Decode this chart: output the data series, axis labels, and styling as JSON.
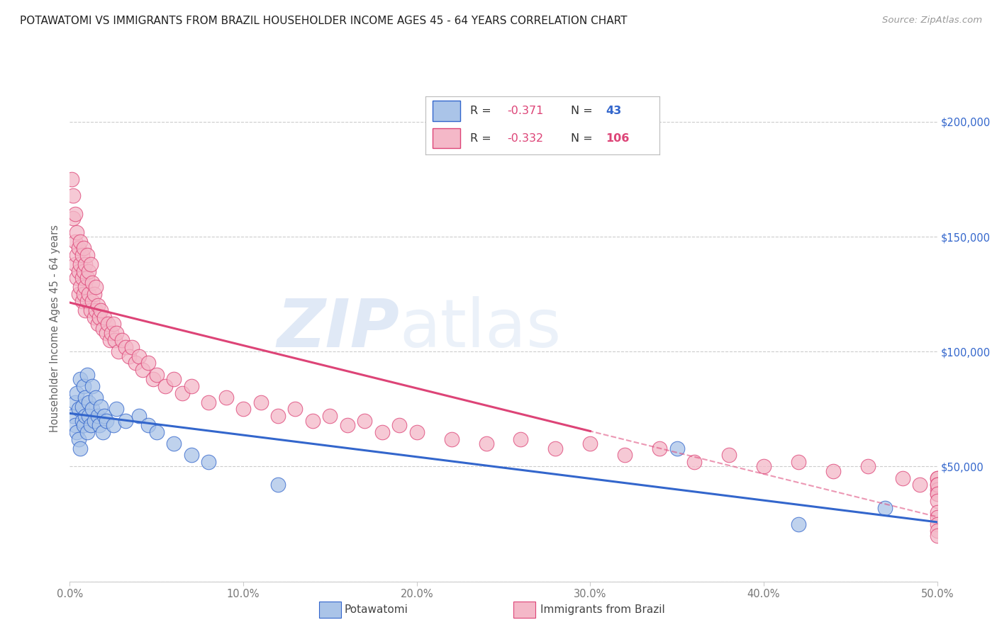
{
  "title": "POTAWATOMI VS IMMIGRANTS FROM BRAZIL HOUSEHOLDER INCOME AGES 45 - 64 YEARS CORRELATION CHART",
  "source": "Source: ZipAtlas.com",
  "ylabel": "Householder Income Ages 45 - 64 years",
  "xlim": [
    0,
    0.5
  ],
  "ylim": [
    0,
    220000
  ],
  "xticks": [
    0.0,
    0.1,
    0.2,
    0.3,
    0.4,
    0.5
  ],
  "xticklabels": [
    "0.0%",
    "10.0%",
    "20.0%",
    "30.0%",
    "40.0%",
    "50.0%"
  ],
  "yticks": [
    0,
    50000,
    100000,
    150000,
    200000
  ],
  "yticklabels": [
    "",
    "$50,000",
    "$100,000",
    "$150,000",
    "$200,000"
  ],
  "grid_color": "#cccccc",
  "background_color": "#ffffff",
  "watermark_zip": "ZIP",
  "watermark_atlas": "atlas",
  "legend_R1": "-0.371",
  "legend_N1": "43",
  "legend_R2": "-0.332",
  "legend_N2": "106",
  "series1_color": "#aac4e8",
  "series2_color": "#f4b8c8",
  "line1_color": "#3366cc",
  "line2_color": "#dd4477",
  "series1_label": "Potawatomi",
  "series2_label": "Immigrants from Brazil",
  "potawatomi_x": [
    0.002,
    0.003,
    0.003,
    0.004,
    0.004,
    0.005,
    0.005,
    0.006,
    0.006,
    0.007,
    0.007,
    0.008,
    0.008,
    0.009,
    0.009,
    0.01,
    0.01,
    0.011,
    0.011,
    0.012,
    0.013,
    0.013,
    0.014,
    0.015,
    0.016,
    0.017,
    0.018,
    0.019,
    0.02,
    0.021,
    0.025,
    0.027,
    0.032,
    0.04,
    0.045,
    0.05,
    0.06,
    0.07,
    0.08,
    0.12,
    0.35,
    0.42,
    0.47
  ],
  "potawatomi_y": [
    72000,
    78000,
    68000,
    82000,
    65000,
    75000,
    62000,
    88000,
    58000,
    76000,
    70000,
    85000,
    68000,
    72000,
    80000,
    90000,
    65000,
    78000,
    72000,
    68000,
    85000,
    75000,
    70000,
    80000,
    72000,
    68000,
    76000,
    65000,
    72000,
    70000,
    68000,
    75000,
    70000,
    72000,
    68000,
    65000,
    60000,
    55000,
    52000,
    42000,
    58000,
    25000,
    32000
  ],
  "brazil_x": [
    0.001,
    0.002,
    0.002,
    0.003,
    0.003,
    0.003,
    0.004,
    0.004,
    0.004,
    0.005,
    0.005,
    0.005,
    0.006,
    0.006,
    0.006,
    0.007,
    0.007,
    0.007,
    0.008,
    0.008,
    0.008,
    0.009,
    0.009,
    0.009,
    0.01,
    0.01,
    0.01,
    0.011,
    0.011,
    0.012,
    0.012,
    0.013,
    0.013,
    0.014,
    0.014,
    0.015,
    0.015,
    0.016,
    0.016,
    0.017,
    0.018,
    0.019,
    0.02,
    0.021,
    0.022,
    0.023,
    0.024,
    0.025,
    0.026,
    0.027,
    0.028,
    0.03,
    0.032,
    0.034,
    0.036,
    0.038,
    0.04,
    0.042,
    0.045,
    0.048,
    0.05,
    0.055,
    0.06,
    0.065,
    0.07,
    0.08,
    0.09,
    0.1,
    0.11,
    0.12,
    0.13,
    0.14,
    0.15,
    0.16,
    0.17,
    0.18,
    0.19,
    0.2,
    0.22,
    0.24,
    0.26,
    0.28,
    0.3,
    0.32,
    0.34,
    0.36,
    0.38,
    0.4,
    0.42,
    0.44,
    0.46,
    0.48,
    0.49,
    0.5,
    0.5,
    0.5,
    0.5,
    0.5,
    0.5,
    0.5,
    0.5,
    0.5,
    0.5,
    0.5,
    0.5,
    0.5
  ],
  "brazil_y": [
    175000,
    168000,
    158000,
    160000,
    148000,
    138000,
    152000,
    142000,
    132000,
    145000,
    135000,
    125000,
    148000,
    138000,
    128000,
    142000,
    132000,
    122000,
    145000,
    135000,
    125000,
    138000,
    128000,
    118000,
    142000,
    132000,
    122000,
    135000,
    125000,
    138000,
    118000,
    130000,
    122000,
    125000,
    115000,
    128000,
    118000,
    120000,
    112000,
    115000,
    118000,
    110000,
    115000,
    108000,
    112000,
    105000,
    108000,
    112000,
    105000,
    108000,
    100000,
    105000,
    102000,
    98000,
    102000,
    95000,
    98000,
    92000,
    95000,
    88000,
    90000,
    85000,
    88000,
    82000,
    85000,
    78000,
    80000,
    75000,
    78000,
    72000,
    75000,
    70000,
    72000,
    68000,
    70000,
    65000,
    68000,
    65000,
    62000,
    60000,
    62000,
    58000,
    60000,
    55000,
    58000,
    52000,
    55000,
    50000,
    52000,
    48000,
    50000,
    45000,
    42000,
    45000,
    45000,
    42000,
    40000,
    38000,
    42000,
    38000,
    35000,
    30000,
    28000,
    25000,
    22000,
    20000
  ]
}
